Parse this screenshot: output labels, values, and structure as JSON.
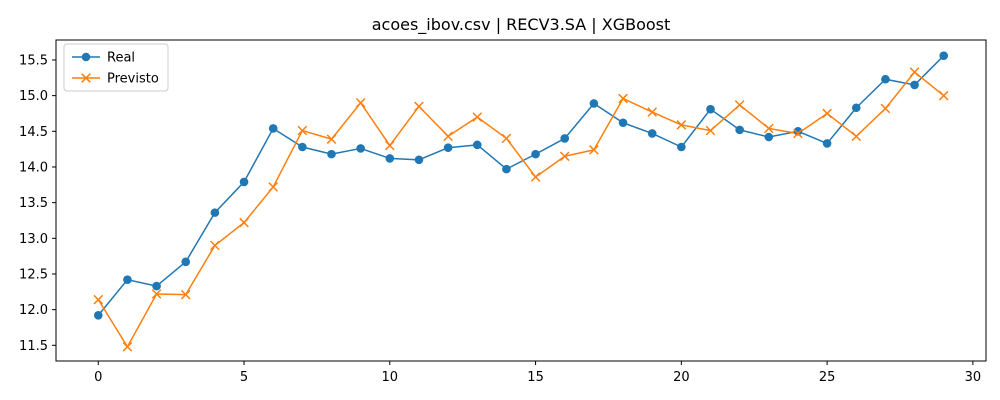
{
  "chart_data": {
    "type": "line",
    "title": "acoes_ibov.csv | RECV3.SA | XGBoost",
    "xlabel": "",
    "ylabel": "",
    "x": [
      0,
      1,
      2,
      3,
      4,
      5,
      6,
      7,
      8,
      9,
      10,
      11,
      12,
      13,
      14,
      15,
      16,
      17,
      18,
      19,
      20,
      21,
      22,
      23,
      24,
      25,
      26,
      27,
      28,
      29
    ],
    "xlim": [
      -1.45,
      30.45
    ],
    "ylim": [
      11.28,
      15.78
    ],
    "xticks": [
      0,
      5,
      10,
      15,
      20,
      25,
      30
    ],
    "yticks": [
      11.5,
      12.0,
      12.5,
      13.0,
      13.5,
      14.0,
      14.5,
      15.0,
      15.5
    ],
    "xtick_labels": [
      "0",
      "5",
      "10",
      "15",
      "20",
      "25",
      "30"
    ],
    "ytick_labels": [
      "11.5",
      "12.0",
      "12.5",
      "13.0",
      "13.5",
      "14.0",
      "14.5",
      "15.0",
      "15.5"
    ],
    "grid": false,
    "legend_position": "top-left",
    "series": [
      {
        "name": "Real",
        "color": "#1f77b4",
        "marker": "circle",
        "values": [
          11.92,
          12.42,
          12.33,
          12.67,
          13.36,
          13.79,
          14.54,
          14.28,
          14.18,
          14.26,
          14.12,
          14.1,
          14.27,
          14.31,
          13.97,
          14.18,
          14.4,
          14.89,
          14.62,
          14.47,
          14.28,
          14.81,
          14.52,
          14.42,
          14.5,
          14.33,
          14.83,
          15.23,
          15.15,
          15.56
        ]
      },
      {
        "name": "Previsto",
        "color": "#ff7f0e",
        "marker": "x",
        "values": [
          12.14,
          11.48,
          12.22,
          12.21,
          12.9,
          13.22,
          13.72,
          14.51,
          14.39,
          14.9,
          14.3,
          14.85,
          14.43,
          14.7,
          14.4,
          13.86,
          14.15,
          14.24,
          14.96,
          14.77,
          14.59,
          14.51,
          14.87,
          14.54,
          14.47,
          14.75,
          14.43,
          14.82,
          15.33,
          15.0
        ]
      }
    ]
  }
}
